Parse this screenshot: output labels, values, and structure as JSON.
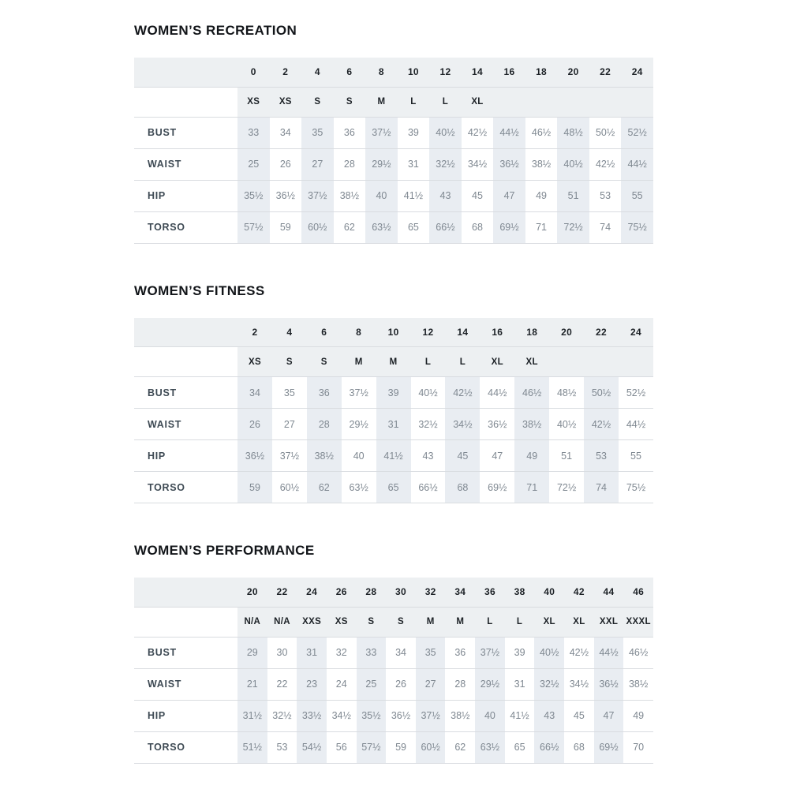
{
  "page_name": "womens-size-charts",
  "colors": {
    "background": "#ffffff",
    "header_band": "#edf0f2",
    "column_stripe": "#e9edf2",
    "row_border": "#d9dce0",
    "title_text": "#121519",
    "header_text": "#1c2126",
    "label_text": "#3e4a54",
    "value_text": "#7f8891"
  },
  "tables": [
    {
      "title": "WOMEN’S RECREATION",
      "sizes": [
        "0",
        "2",
        "4",
        "6",
        "8",
        "10",
        "12",
        "14",
        "16",
        "18",
        "20",
        "22",
        "24"
      ],
      "letters": [
        "XS",
        "XS",
        "S",
        "S",
        "M",
        "L",
        "L",
        "XL",
        "",
        "",
        "",
        "",
        ""
      ],
      "rows": [
        {
          "label": "BUST",
          "values": [
            "33",
            "34",
            "35",
            "36",
            "37½",
            "39",
            "40½",
            "42½",
            "44½",
            "46½",
            "48½",
            "50½",
            "52½"
          ]
        },
        {
          "label": "WAIST",
          "values": [
            "25",
            "26",
            "27",
            "28",
            "29½",
            "31",
            "32½",
            "34½",
            "36½",
            "38½",
            "40½",
            "42½",
            "44½"
          ]
        },
        {
          "label": "HIP",
          "values": [
            "35½",
            "36½",
            "37½",
            "38½",
            "40",
            "41½",
            "43",
            "45",
            "47",
            "49",
            "51",
            "53",
            "55"
          ]
        },
        {
          "label": "TORSO",
          "values": [
            "57½",
            "59",
            "60½",
            "62",
            "63½",
            "65",
            "66½",
            "68",
            "69½",
            "71",
            "72½",
            "74",
            "75½"
          ]
        }
      ]
    },
    {
      "title": "WOMEN’S FITNESS",
      "sizes": [
        "2",
        "4",
        "6",
        "8",
        "10",
        "12",
        "14",
        "16",
        "18",
        "20",
        "22",
        "24"
      ],
      "letters": [
        "XS",
        "S",
        "S",
        "M",
        "M",
        "L",
        "L",
        "XL",
        "XL",
        "",
        "",
        ""
      ],
      "rows": [
        {
          "label": "BUST",
          "values": [
            "34",
            "35",
            "36",
            "37½",
            "39",
            "40½",
            "42½",
            "44½",
            "46½",
            "48½",
            "50½",
            "52½"
          ]
        },
        {
          "label": "WAIST",
          "values": [
            "26",
            "27",
            "28",
            "29½",
            "31",
            "32½",
            "34½",
            "36½",
            "38½",
            "40½",
            "42½",
            "44½"
          ]
        },
        {
          "label": "HIP",
          "values": [
            "36½",
            "37½",
            "38½",
            "40",
            "41½",
            "43",
            "45",
            "47",
            "49",
            "51",
            "53",
            "55"
          ]
        },
        {
          "label": "TORSO",
          "values": [
            "59",
            "60½",
            "62",
            "63½",
            "65",
            "66½",
            "68",
            "69½",
            "71",
            "72½",
            "74",
            "75½"
          ]
        }
      ]
    },
    {
      "title": "WOMEN’S PERFORMANCE",
      "sizes": [
        "20",
        "22",
        "24",
        "26",
        "28",
        "30",
        "32",
        "34",
        "36",
        "38",
        "40",
        "42",
        "44",
        "46"
      ],
      "letters": [
        "N/A",
        "N/A",
        "XXS",
        "XS",
        "S",
        "S",
        "M",
        "M",
        "L",
        "L",
        "XL",
        "XL",
        "XXL",
        "XXXL"
      ],
      "rows": [
        {
          "label": "BUST",
          "values": [
            "29",
            "30",
            "31",
            "32",
            "33",
            "34",
            "35",
            "36",
            "37½",
            "39",
            "40½",
            "42½",
            "44½",
            "46½"
          ]
        },
        {
          "label": "WAIST",
          "values": [
            "21",
            "22",
            "23",
            "24",
            "25",
            "26",
            "27",
            "28",
            "29½",
            "31",
            "32½",
            "34½",
            "36½",
            "38½"
          ]
        },
        {
          "label": "HIP",
          "values": [
            "31½",
            "32½",
            "33½",
            "34½",
            "35½",
            "36½",
            "37½",
            "38½",
            "40",
            "41½",
            "43",
            "45",
            "47",
            "49"
          ]
        },
        {
          "label": "TORSO",
          "values": [
            "51½",
            "53",
            "54½",
            "56",
            "57½",
            "59",
            "60½",
            "62",
            "63½",
            "65",
            "66½",
            "68",
            "69½",
            "70"
          ]
        }
      ]
    }
  ]
}
